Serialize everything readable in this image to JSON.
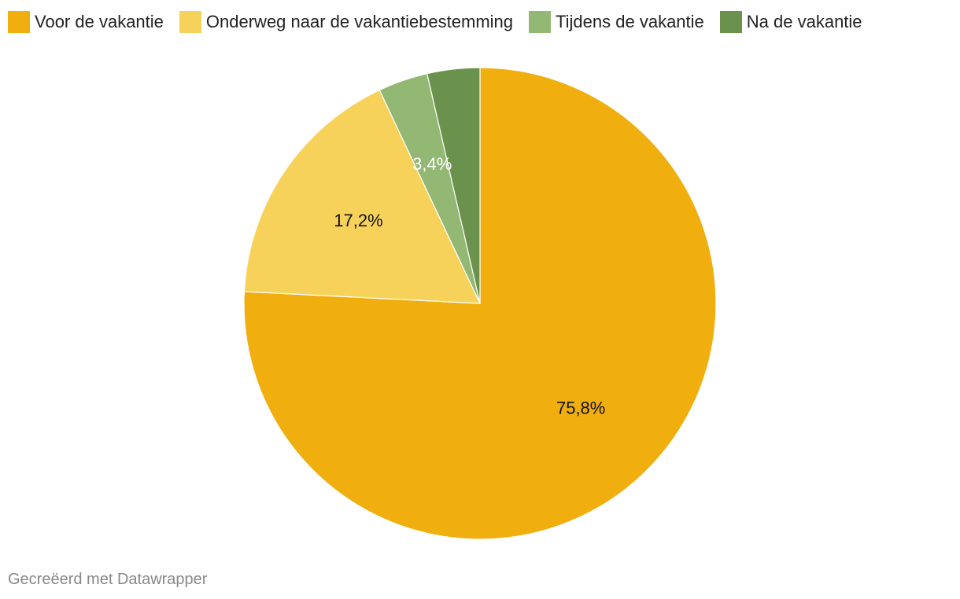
{
  "chart_data": {
    "type": "pie",
    "categories": [
      "Voor de vakantie",
      "Onderweg naar de vakantiebestemming",
      "Tijdens de vakantie",
      "Na de vakantie"
    ],
    "values": [
      75.8,
      17.2,
      3.4,
      3.6
    ],
    "data_labels": [
      "75,8%",
      "17,2%",
      "3,4%",
      ""
    ],
    "colors": [
      "#f0ae0f",
      "#f7d25b",
      "#93b873",
      "#6a924c"
    ],
    "label_colors": [
      "#111111",
      "#111111",
      "#ffffff",
      "#ffffff"
    ],
    "legend_position": "top-left",
    "start_angle": "12 o'clock",
    "direction": "clockwise"
  },
  "footer": {
    "credit": "Gecreëerd met Datawrapper"
  }
}
